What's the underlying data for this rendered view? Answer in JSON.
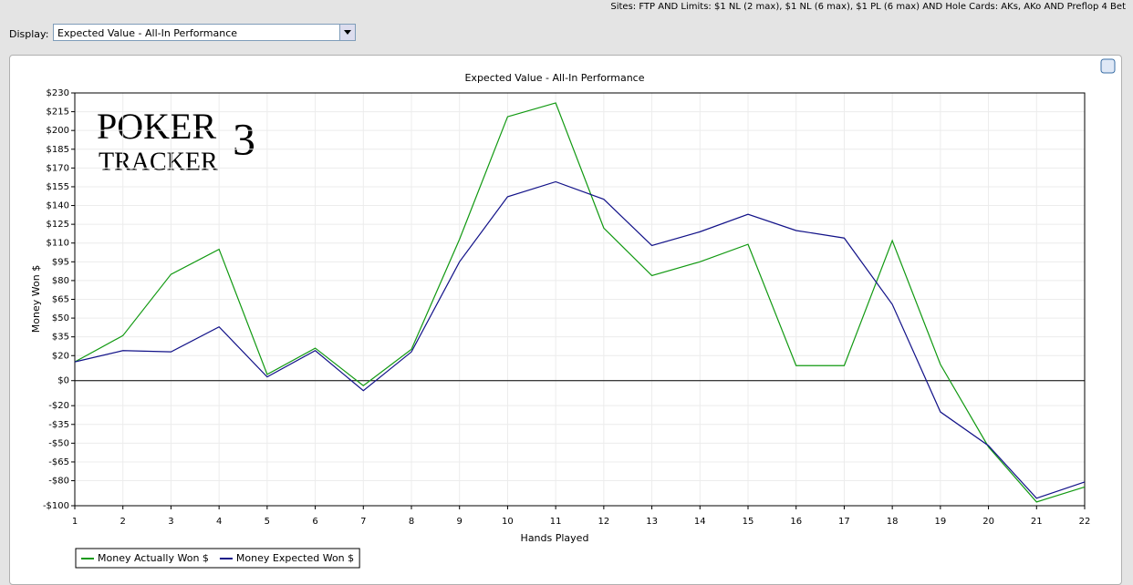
{
  "header": {
    "filter": "Sites: FTP AND Limits: $1 NL (2 max), $1 NL (6 max), $1 PL (6 max) AND Hole Cards: AKs, AKo AND Preflop 4 Bet",
    "display_label": "Display:",
    "display_value": "Expected Value - All-In Performance"
  },
  "watermark": {
    "line1": "POKER",
    "line2": "TRACKER",
    "mark": "3"
  },
  "chart_data": {
    "type": "line",
    "title": "Expected Value - All-In Performance",
    "xlabel": "Hands Played",
    "ylabel": "Money Won $",
    "x": [
      1,
      2,
      3,
      4,
      5,
      6,
      7,
      8,
      9,
      10,
      11,
      12,
      13,
      14,
      15,
      16,
      17,
      18,
      19,
      20,
      21,
      22
    ],
    "xlim": [
      1,
      22
    ],
    "xticks": [
      1,
      2,
      3,
      4,
      5,
      6,
      7,
      8,
      9,
      10,
      11,
      12,
      13,
      14,
      15,
      16,
      17,
      18,
      19,
      20,
      21,
      22
    ],
    "ylim": [
      -100,
      230
    ],
    "yticks": [
      {
        "value": 230,
        "label": "$230"
      },
      {
        "value": 215,
        "label": "$215"
      },
      {
        "value": 200,
        "label": "$200"
      },
      {
        "value": 185,
        "label": "$185"
      },
      {
        "value": 170,
        "label": "$170"
      },
      {
        "value": 155,
        "label": "$155"
      },
      {
        "value": 140,
        "label": "$140"
      },
      {
        "value": 125,
        "label": "$125"
      },
      {
        "value": 110,
        "label": "$110"
      },
      {
        "value": 95,
        "label": "$95"
      },
      {
        "value": 80,
        "label": "$80"
      },
      {
        "value": 65,
        "label": "$65"
      },
      {
        "value": 50,
        "label": "$50"
      },
      {
        "value": 35,
        "label": "$35"
      },
      {
        "value": 20,
        "label": "$20"
      },
      {
        "value": 0,
        "label": "$0"
      },
      {
        "value": -20,
        "label": "-$20"
      },
      {
        "value": -35,
        "label": "-$35"
      },
      {
        "value": -50,
        "label": "-$50"
      },
      {
        "value": -65,
        "label": "-$65"
      },
      {
        "value": -80,
        "label": "-$80"
      },
      {
        "value": -100,
        "label": "-$100"
      }
    ],
    "grid": true,
    "legend": "bottom-left",
    "series": [
      {
        "name": "Money Actually Won $",
        "color": "#119911",
        "values": [
          15,
          36,
          85,
          105,
          5,
          26,
          -4,
          25,
          113,
          211,
          222,
          122,
          84,
          95,
          109,
          12,
          12,
          112,
          13,
          -53,
          -97,
          -85
        ]
      },
      {
        "name": "Money Expected Won $",
        "color": "#111188",
        "values": [
          15,
          24,
          23,
          43,
          3,
          24,
          -8,
          23,
          95,
          147,
          159,
          145,
          108,
          119,
          133,
          120,
          114,
          61,
          -25,
          -52,
          -94,
          -81
        ]
      }
    ]
  }
}
